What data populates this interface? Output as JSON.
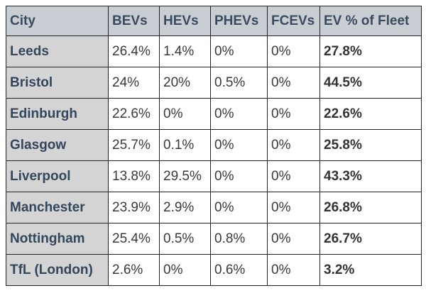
{
  "table": {
    "headers": [
      "City",
      "BEVs",
      "HEVs",
      "PHEVs",
      "FCEVs",
      "EV % of Fleet"
    ],
    "rows": [
      [
        "Leeds",
        "26.4%",
        "1.4%",
        "0%",
        "0%",
        "27.8%"
      ],
      [
        "Bristol",
        "24%",
        "20%",
        "0.5%",
        "0%",
        "44.5%"
      ],
      [
        "Edinburgh",
        "22.6%",
        "0%",
        "0%",
        "0%",
        "22.6%"
      ],
      [
        "Glasgow",
        "25.7%",
        "0.1%",
        "0%",
        "0%",
        "25.8%"
      ],
      [
        "Liverpool",
        "13.8%",
        "29.5%",
        "0%",
        "0%",
        "43.3%"
      ],
      [
        "Manchester",
        "23.9%",
        "2.9%",
        "0%",
        "0%",
        "26.8%"
      ],
      [
        "Nottingham",
        "25.4%",
        "0.5%",
        "0.8%",
        "0%",
        "26.7%"
      ],
      [
        "TfL (London)",
        "2.6%",
        "0%",
        "0.6%",
        "0%",
        "3.2%"
      ]
    ]
  }
}
